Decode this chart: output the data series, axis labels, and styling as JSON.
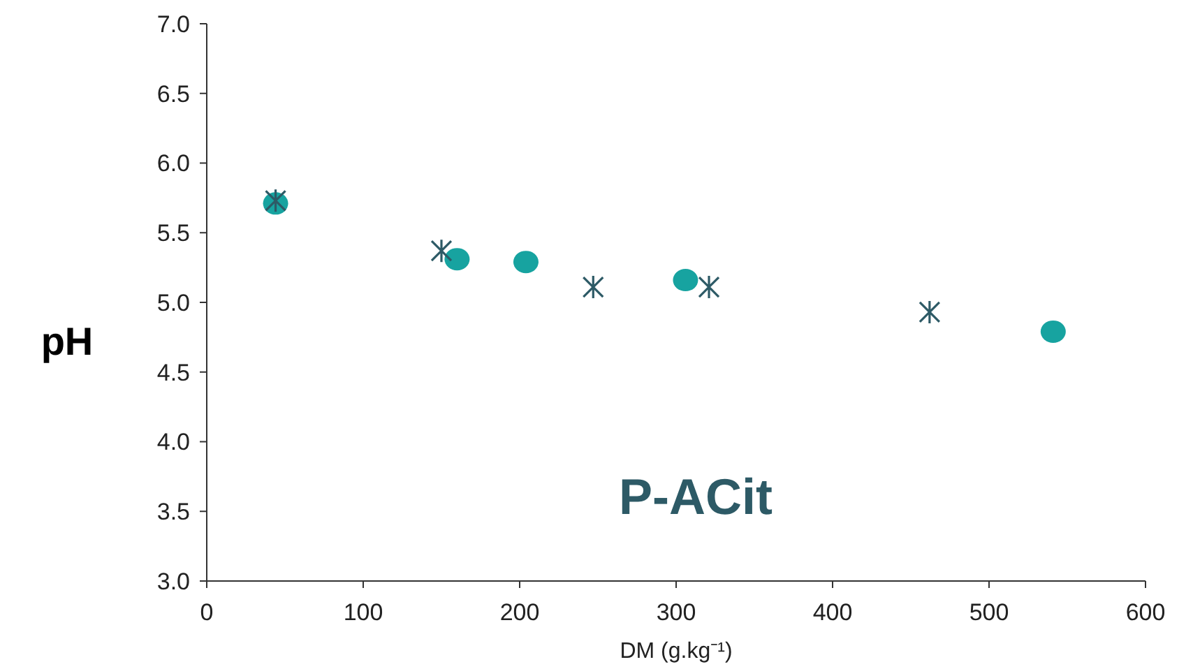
{
  "chart_data": {
    "type": "scatter",
    "xlabel": "DM (g.kg⁻¹)",
    "ylabel": "pH",
    "annotations": [
      "P-ACit"
    ],
    "xlim": [
      0,
      600
    ],
    "xticks": [
      0,
      100,
      200,
      300,
      400,
      500,
      600
    ],
    "ylim": [
      3,
      7
    ],
    "yticks": [
      {
        "value": 3,
        "label": "3.0"
      },
      3.5,
      {
        "value": 4,
        "label": "4.0"
      },
      4.5,
      {
        "value": 5,
        "label": "5.0"
      },
      5.5,
      {
        "value": 6,
        "label": "6.0"
      },
      6.5,
      {
        "value": 7,
        "label": "7.0"
      }
    ],
    "grid": false,
    "series": [
      {
        "color": "#17a3a0",
        "marker": "circle",
        "x": [
          44,
          160,
          204,
          306,
          541
        ],
        "values": [
          5.71,
          5.31,
          5.29,
          5.16,
          4.79
        ]
      },
      {
        "color": "#2d5a66",
        "marker": "cross",
        "x": [
          44,
          150,
          247,
          321,
          462
        ],
        "values": [
          5.73,
          5.37,
          5.11,
          5.11,
          4.93
        ]
      }
    ]
  }
}
